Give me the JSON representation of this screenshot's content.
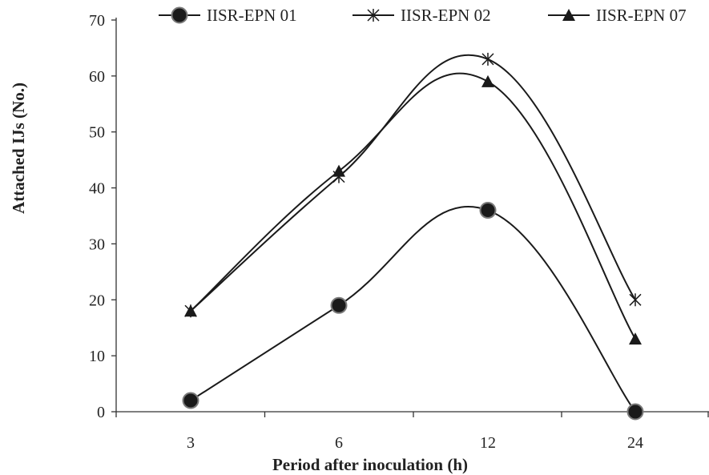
{
  "chart_data": {
    "type": "line",
    "smooth": true,
    "categories": [
      "3",
      "6",
      "12",
      "24"
    ],
    "series": [
      {
        "name": "IISR-EPN 01",
        "marker": "circle",
        "values": [
          2,
          19,
          36,
          0
        ]
      },
      {
        "name": "IISR-EPN 02",
        "marker": "star",
        "values": [
          18,
          42,
          63,
          20
        ]
      },
      {
        "name": "IISR-EPN 07",
        "marker": "triangle",
        "values": [
          18,
          43,
          59,
          13
        ]
      }
    ],
    "xlabel": "Period after inoculation (h)",
    "ylabel": "Attached  IJs (No.)",
    "ylim": [
      0,
      70
    ],
    "yticks": [
      0,
      10,
      20,
      30,
      40,
      50,
      60,
      70
    ],
    "grid": false,
    "legend_position": "top",
    "colors": {
      "line": "#1a1a1a",
      "marker_fill": "#1a1a1a",
      "marker_edge": "#7a7a7a",
      "axis": "#333333"
    }
  }
}
